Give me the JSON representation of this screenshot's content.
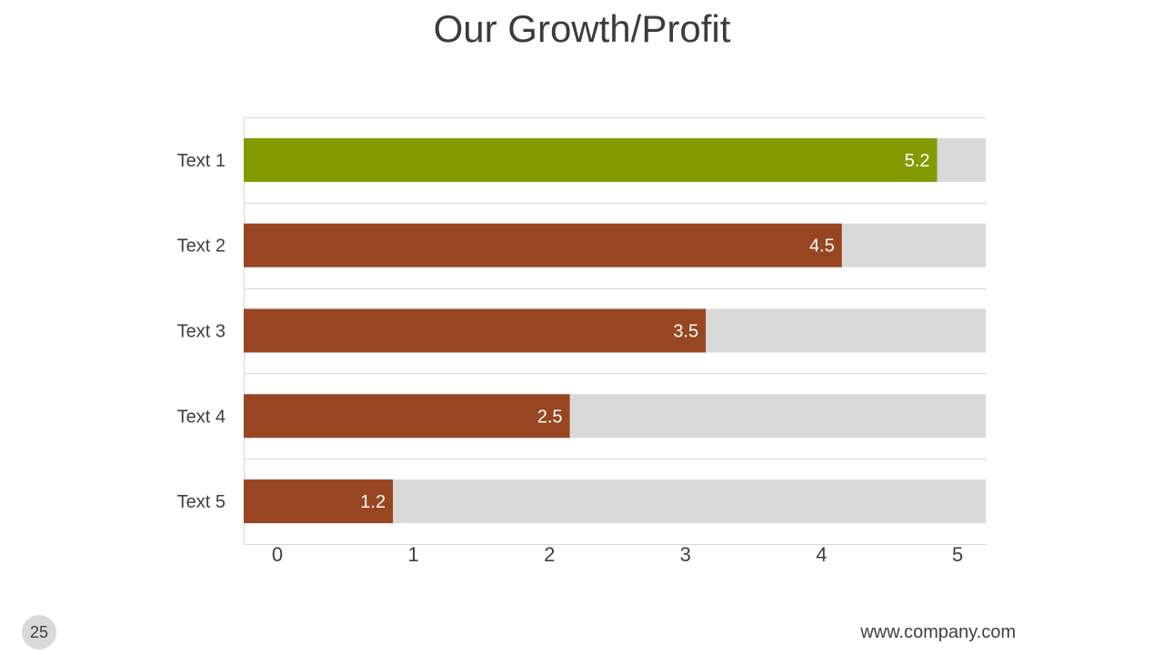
{
  "slide": {
    "title": "Our Growth/Profit",
    "page_number": "25",
    "footer_url": "www.company.com"
  },
  "colors": {
    "highlight_bar": "#839a00",
    "bar": "#974621",
    "track": "#d9d9d9",
    "gridline": "#d9d9d9"
  },
  "chart_data": {
    "type": "bar",
    "orientation": "horizontal",
    "categories": [
      "Text 1",
      "Text 2",
      "Text 3",
      "Text 4",
      "Text 5"
    ],
    "values": [
      5.2,
      4.5,
      3.5,
      2.5,
      1.2
    ],
    "data_labels": [
      "5.2",
      "4.5",
      "3.5",
      "2.5",
      "1.2"
    ],
    "x_ticks": [
      "0",
      "1",
      "2",
      "3",
      "4",
      "5"
    ],
    "xlim": [
      0,
      5
    ],
    "grid": true,
    "legend": "none"
  }
}
